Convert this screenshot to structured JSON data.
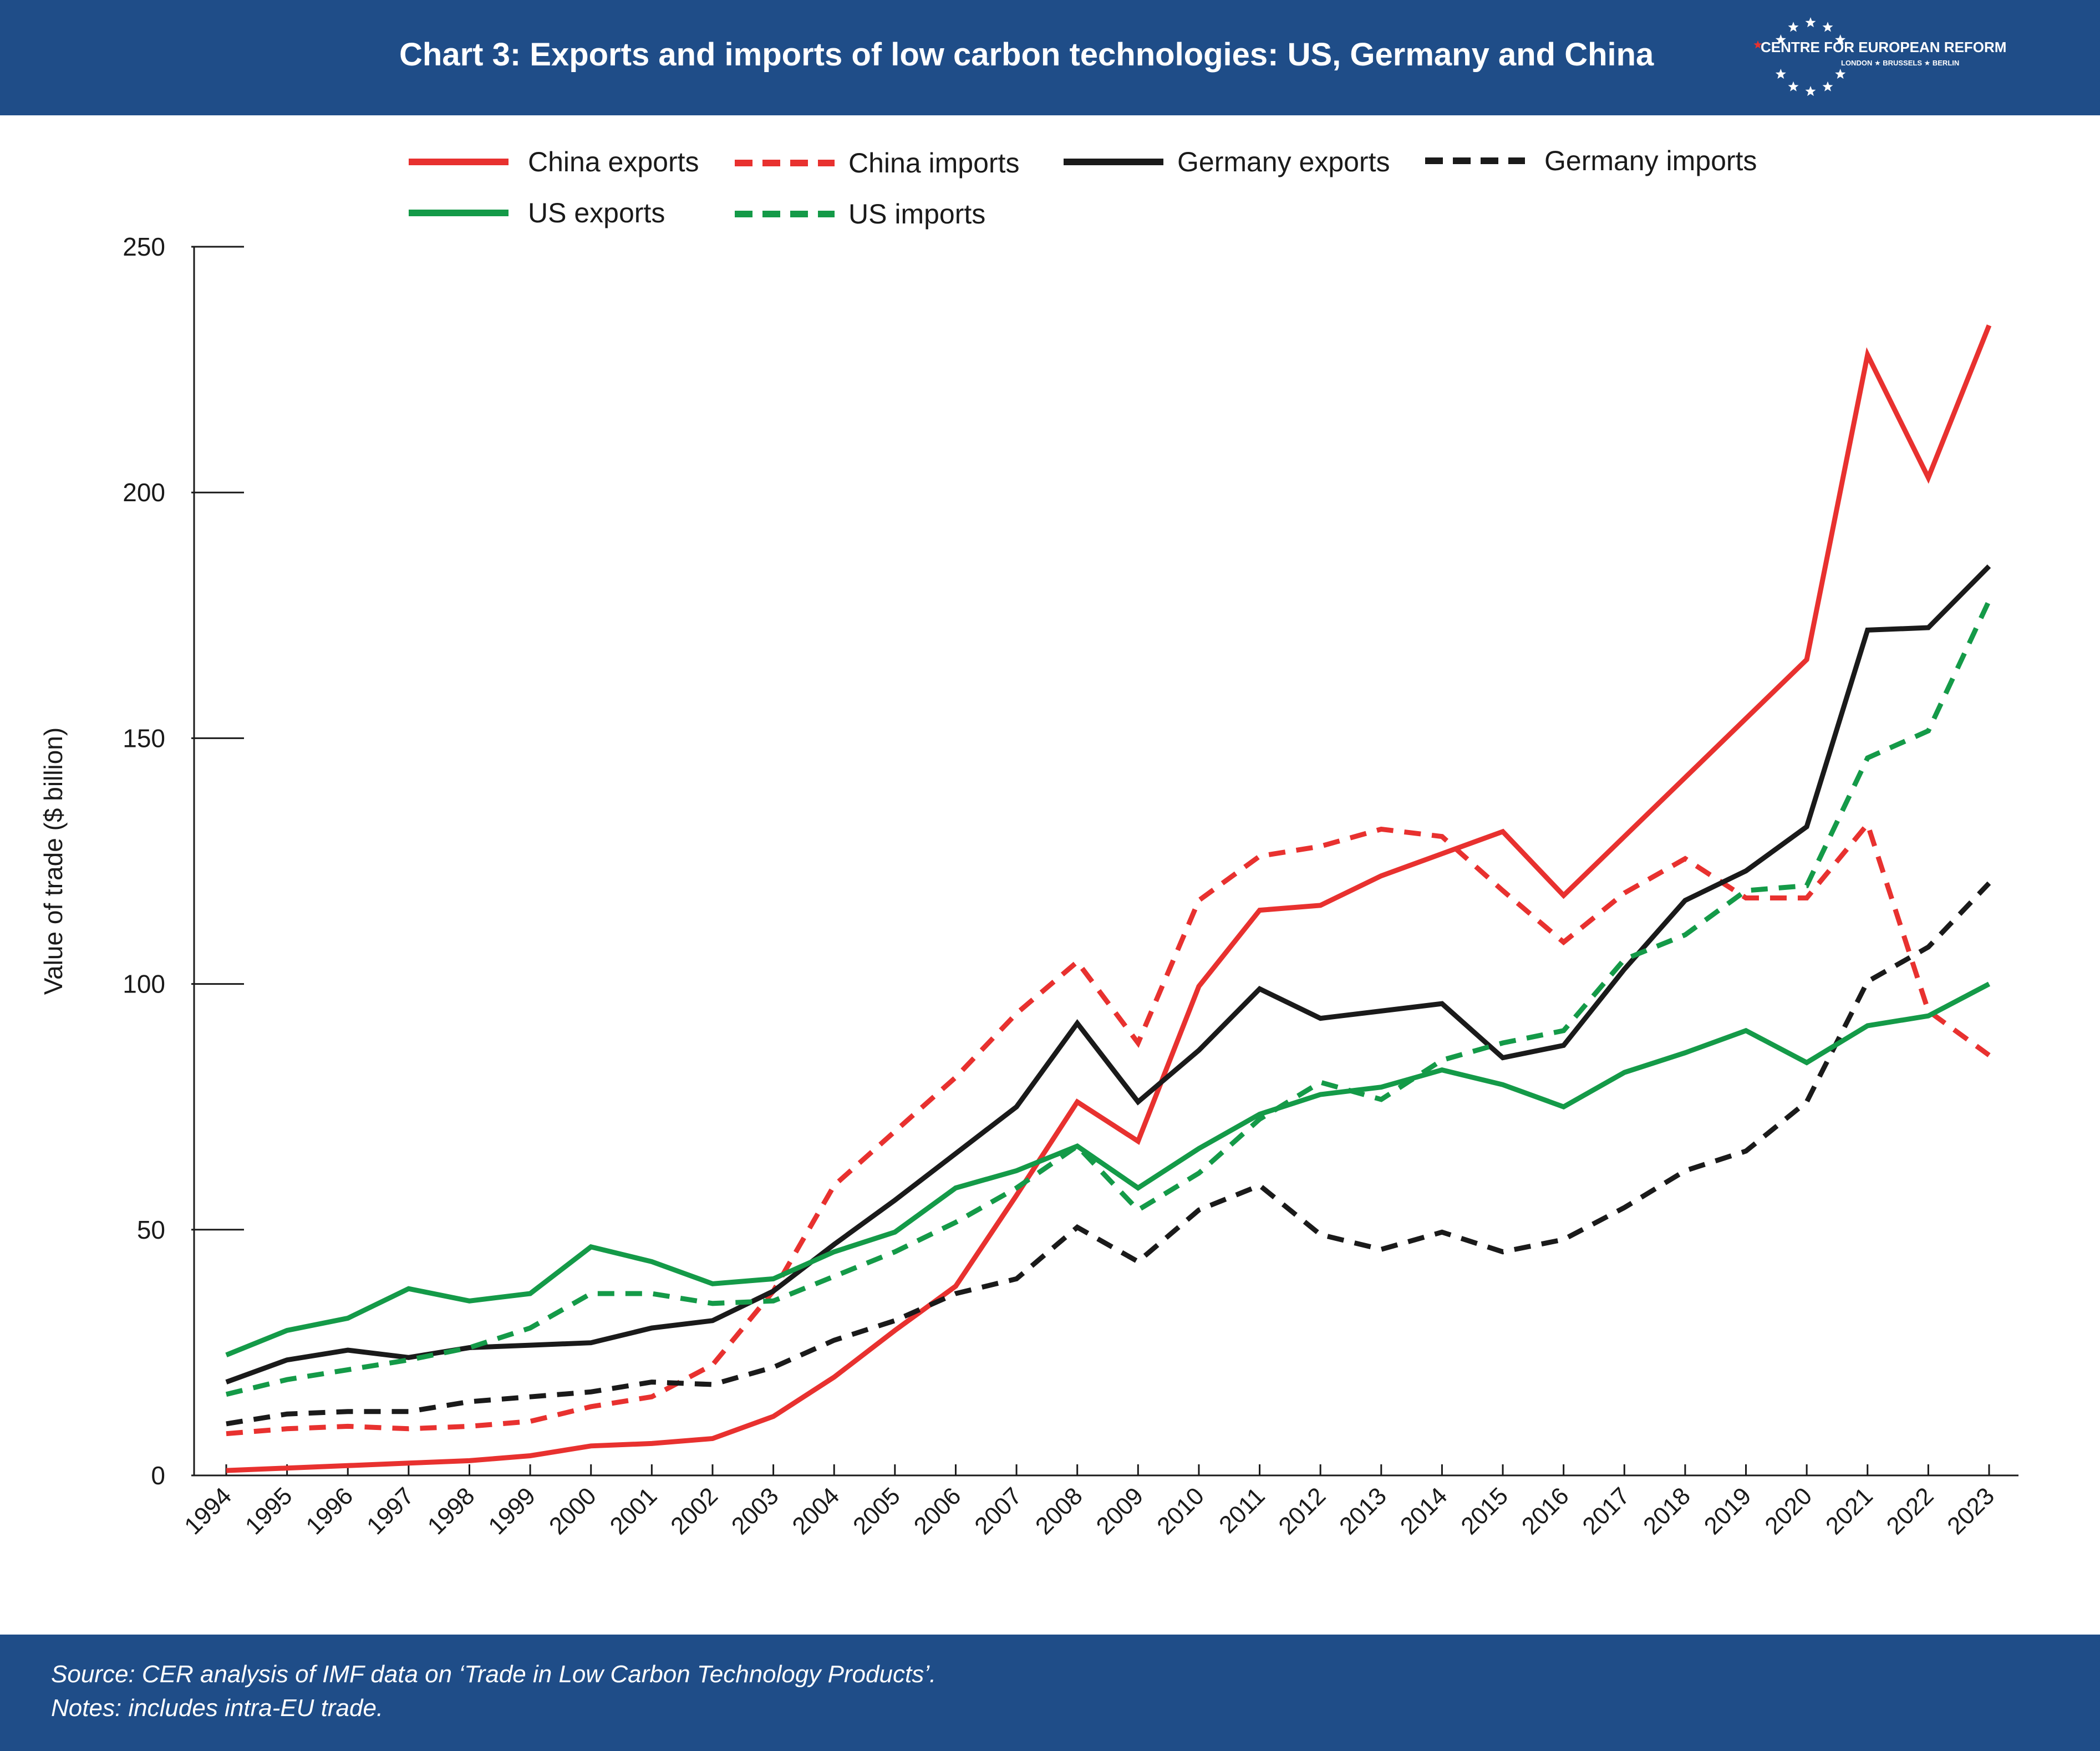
{
  "header": {
    "title": "Chart 3: Exports and imports of low carbon technologies: US, Germany and China",
    "logo_name": "CENTRE FOR EUROPEAN REFORM",
    "logo_cities": "LONDON ★ BRUSSELS ★ BERLIN"
  },
  "footer": {
    "source": "Source: CER analysis of IMF data on ‘Trade in Low Carbon Technology Products’.",
    "notes": "Notes: includes intra-EU trade."
  },
  "colors": {
    "header_bg": "#1f4d88",
    "china": "#e8312f",
    "germany": "#1a1a1a",
    "us": "#149a48"
  },
  "chart_data": {
    "type": "line",
    "title": "Chart 3: Exports and imports of low carbon technologies: US, Germany and China",
    "xlabel": "",
    "ylabel": "Value of trade ($ billion)",
    "ylim": [
      0,
      250
    ],
    "yticks": [
      0,
      50,
      100,
      150,
      200,
      250
    ],
    "grid": false,
    "legend_position": "top",
    "x": [
      "1994",
      "1995",
      "1996",
      "1997",
      "1998",
      "1999",
      "2000",
      "2001",
      "2002",
      "2003",
      "2004",
      "2005",
      "2006",
      "2007",
      "2008",
      "2009",
      "2010",
      "2011",
      "2012",
      "2013",
      "2014",
      "2015",
      "2016",
      "2017",
      "2018",
      "2019",
      "2020",
      "2021",
      "2022",
      "2023"
    ],
    "series": [
      {
        "name": "China exports",
        "color": "#e8312f",
        "dashed": false,
        "values": [
          1,
          1.5,
          2,
          2.5,
          3,
          4,
          6,
          6.5,
          7.5,
          12,
          20,
          29.5,
          38.5,
          57,
          76,
          68,
          99.5,
          115,
          116,
          122,
          126.5,
          131,
          118,
          130,
          142,
          154,
          166,
          228,
          203,
          234
        ]
      },
      {
        "name": "China imports",
        "color": "#e8312f",
        "dashed": true,
        "values": [
          8.5,
          9.5,
          10,
          9.5,
          10,
          11,
          14,
          16,
          22.5,
          37.5,
          59,
          70,
          81,
          94,
          104.5,
          88,
          117,
          126,
          128,
          131.5,
          130,
          119,
          108.5,
          118.5,
          125.5,
          117.5,
          117.5,
          132.5,
          94.5,
          85.5
        ]
      },
      {
        "name": "Germany exports",
        "color": "#1a1a1a",
        "dashed": false,
        "values": [
          19,
          23.5,
          25.5,
          24,
          26,
          26.5,
          27,
          30,
          31.5,
          37.5,
          47,
          56,
          65.5,
          75,
          92,
          76,
          86.5,
          99,
          93,
          94.5,
          96,
          85,
          87.5,
          103,
          117,
          123,
          132,
          172,
          172.5,
          185
        ]
      },
      {
        "name": "Germany imports",
        "color": "#1a1a1a",
        "dashed": true,
        "values": [
          10.5,
          12.5,
          13,
          13,
          15,
          16,
          17,
          19,
          18.5,
          22,
          27.5,
          31.5,
          37,
          40,
          50.5,
          43.5,
          54,
          59,
          49,
          46,
          49.5,
          45.5,
          48,
          54.5,
          62,
          66,
          76,
          100.5,
          107.5,
          120.5
        ]
      },
      {
        "name": "US exports",
        "color": "#149a48",
        "dashed": false,
        "values": [
          24.5,
          29.5,
          32,
          38,
          35.5,
          37,
          46.5,
          43.5,
          39,
          40,
          45.5,
          49.5,
          58.5,
          62,
          67,
          58.5,
          66.5,
          73.5,
          77.5,
          79,
          82.5,
          79.5,
          75,
          82,
          86,
          90.5,
          84,
          91.5,
          93.5,
          100
        ]
      },
      {
        "name": "US imports",
        "color": "#149a48",
        "dashed": true,
        "values": [
          16.5,
          19.5,
          21.5,
          23.5,
          26,
          30,
          37,
          37,
          35,
          35.5,
          40.5,
          45.5,
          51.5,
          58.5,
          67,
          54,
          61.5,
          72.5,
          80,
          76.5,
          84.5,
          88,
          90.5,
          105,
          110,
          119,
          120,
          146,
          151.5,
          178
        ]
      }
    ]
  }
}
